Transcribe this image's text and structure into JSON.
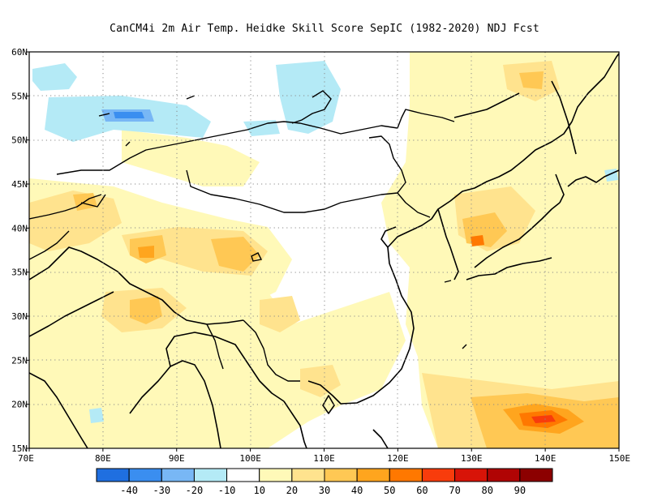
{
  "title": "CanCM4i  2m Air Temp. Heidke Skill Score SepIC (1982-2020) NDJ Fcst",
  "map": {
    "lon_range": [
      70,
      150
    ],
    "lat_range": [
      15,
      60
    ],
    "grid": true,
    "lat_ticks": [
      {
        "value": 15,
        "label": "15N"
      },
      {
        "value": 20,
        "label": "20N"
      },
      {
        "value": 25,
        "label": "25N"
      },
      {
        "value": 30,
        "label": "30N"
      },
      {
        "value": 35,
        "label": "35N"
      },
      {
        "value": 40,
        "label": "40N"
      },
      {
        "value": 45,
        "label": "45N"
      },
      {
        "value": 50,
        "label": "50N"
      },
      {
        "value": 55,
        "label": "55N"
      },
      {
        "value": 60,
        "label": "60N"
      }
    ],
    "lon_ticks": [
      {
        "value": 70,
        "label": "70E"
      },
      {
        "value": 80,
        "label": "80E"
      },
      {
        "value": 90,
        "label": "90E"
      },
      {
        "value": 100,
        "label": "100E"
      },
      {
        "value": 110,
        "label": "110E"
      },
      {
        "value": 120,
        "label": "120E"
      },
      {
        "value": 130,
        "label": "130E"
      },
      {
        "value": 140,
        "label": "140E"
      },
      {
        "value": 150,
        "label": "150E"
      }
    ]
  },
  "colorbar": {
    "colors": [
      "#1f6fe0",
      "#3a8ef0",
      "#78b7f5",
      "#b4eaf6",
      "#ffffff",
      "#fff9b8",
      "#ffe38e",
      "#ffc854",
      "#ffa51e",
      "#ff7800",
      "#f83c0c",
      "#d81408",
      "#b00404",
      "#8c0000"
    ],
    "labels": [
      "-40",
      "-30",
      "-20",
      "-10",
      "10",
      "20",
      "30",
      "40",
      "50",
      "60",
      "70",
      "80",
      "90"
    ]
  }
}
